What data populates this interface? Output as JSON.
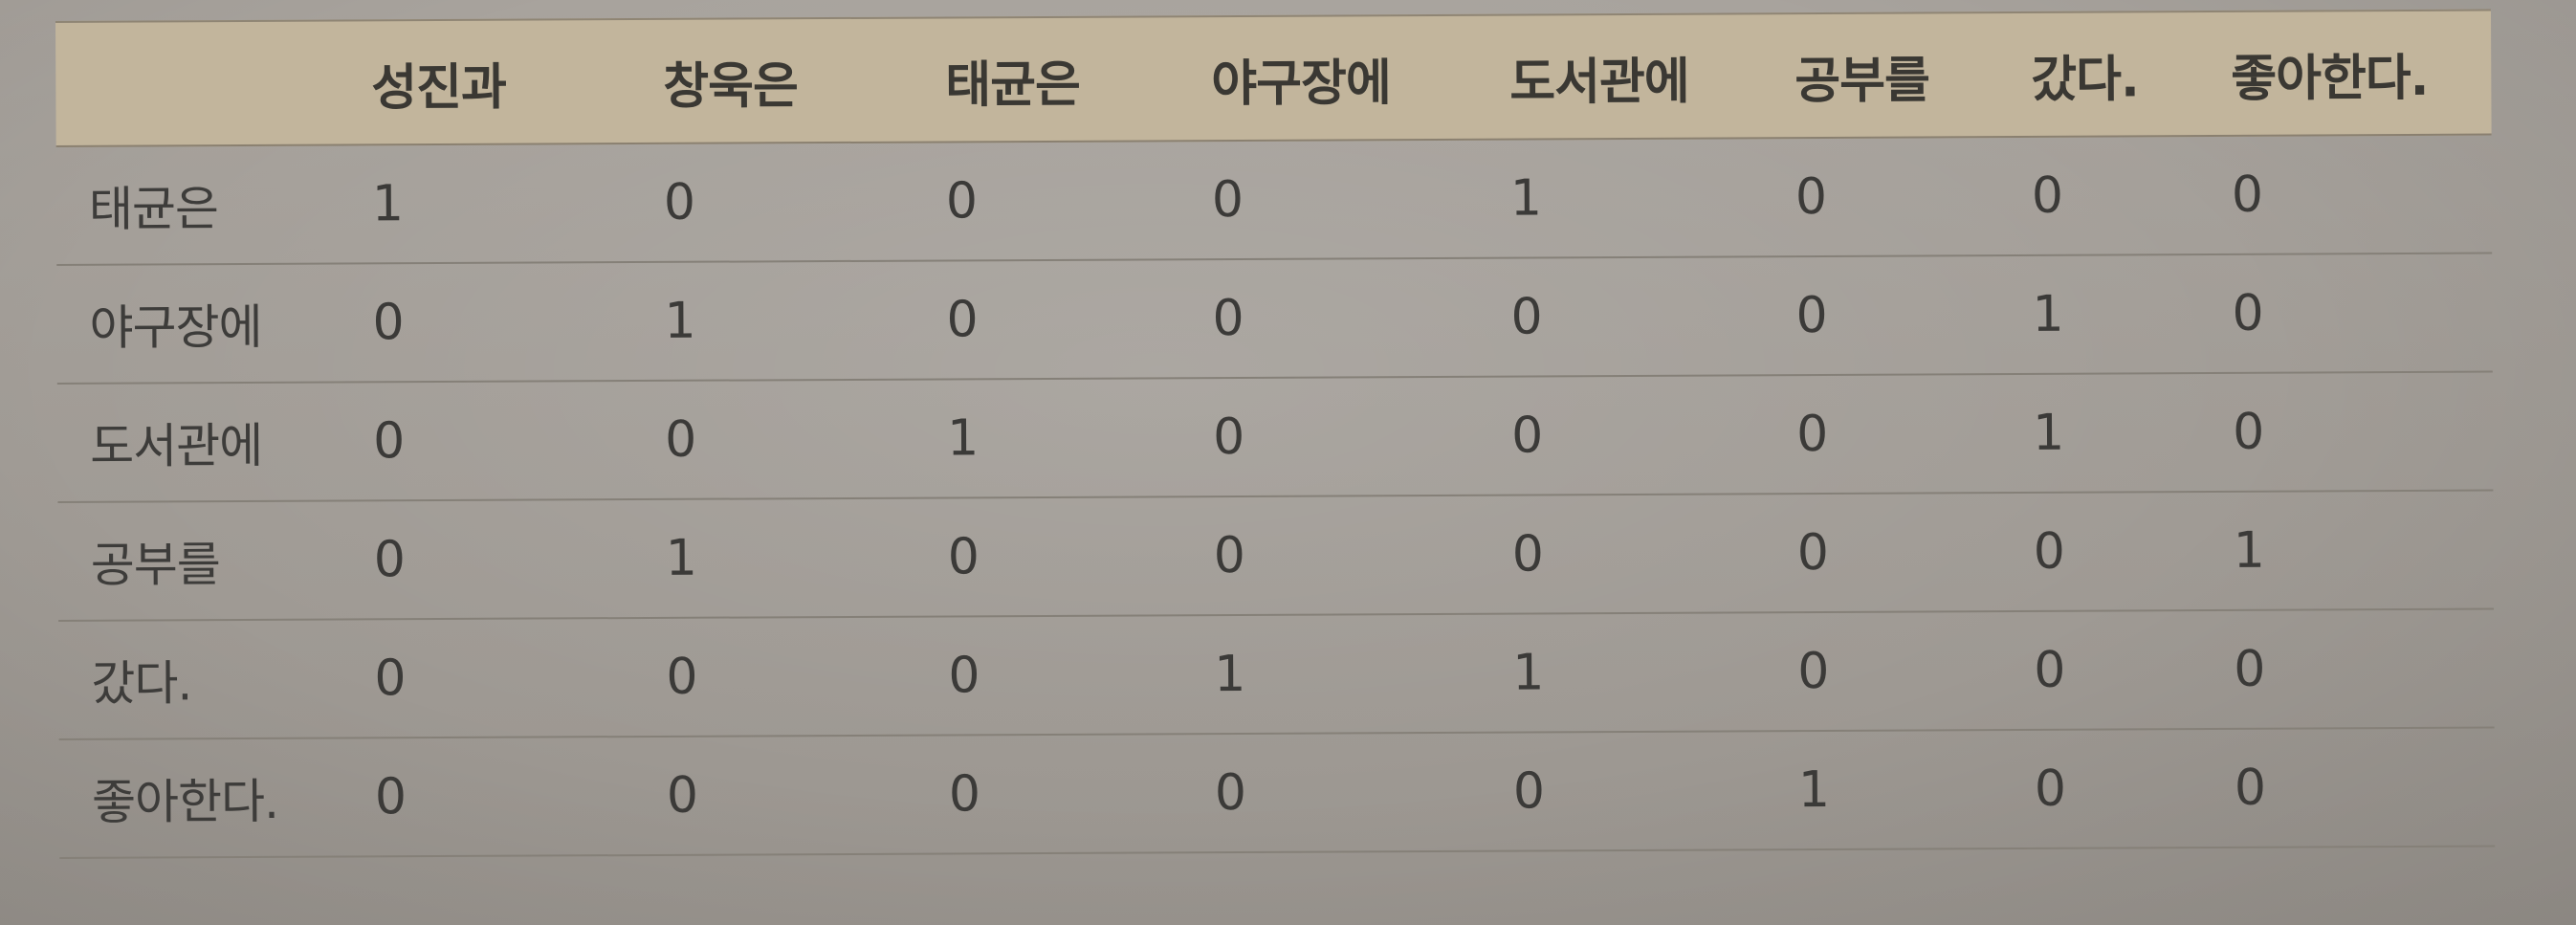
{
  "table": {
    "columns": [
      "",
      "성진과",
      "창욱은",
      "태균은",
      "야구장에",
      "도서관에",
      "공부를",
      "갔다.",
      "좋아한다."
    ],
    "rows": [
      {
        "label": "태균은",
        "values": [
          "1",
          "0",
          "0",
          "0",
          "1",
          "0",
          "0",
          "0"
        ]
      },
      {
        "label": "야구장에",
        "values": [
          "0",
          "1",
          "0",
          "0",
          "0",
          "0",
          "1",
          "0"
        ]
      },
      {
        "label": "도서관에",
        "values": [
          "0",
          "0",
          "1",
          "0",
          "0",
          "0",
          "1",
          "0"
        ]
      },
      {
        "label": "공부를",
        "values": [
          "0",
          "1",
          "0",
          "0",
          "0",
          "0",
          "0",
          "1"
        ]
      },
      {
        "label": "갔다.",
        "values": [
          "0",
          "0",
          "0",
          "1",
          "1",
          "0",
          "0",
          "0"
        ]
      },
      {
        "label": "좋아한다.",
        "values": [
          "0",
          "0",
          "0",
          "0",
          "0",
          "1",
          "0",
          "0"
        ]
      }
    ]
  }
}
